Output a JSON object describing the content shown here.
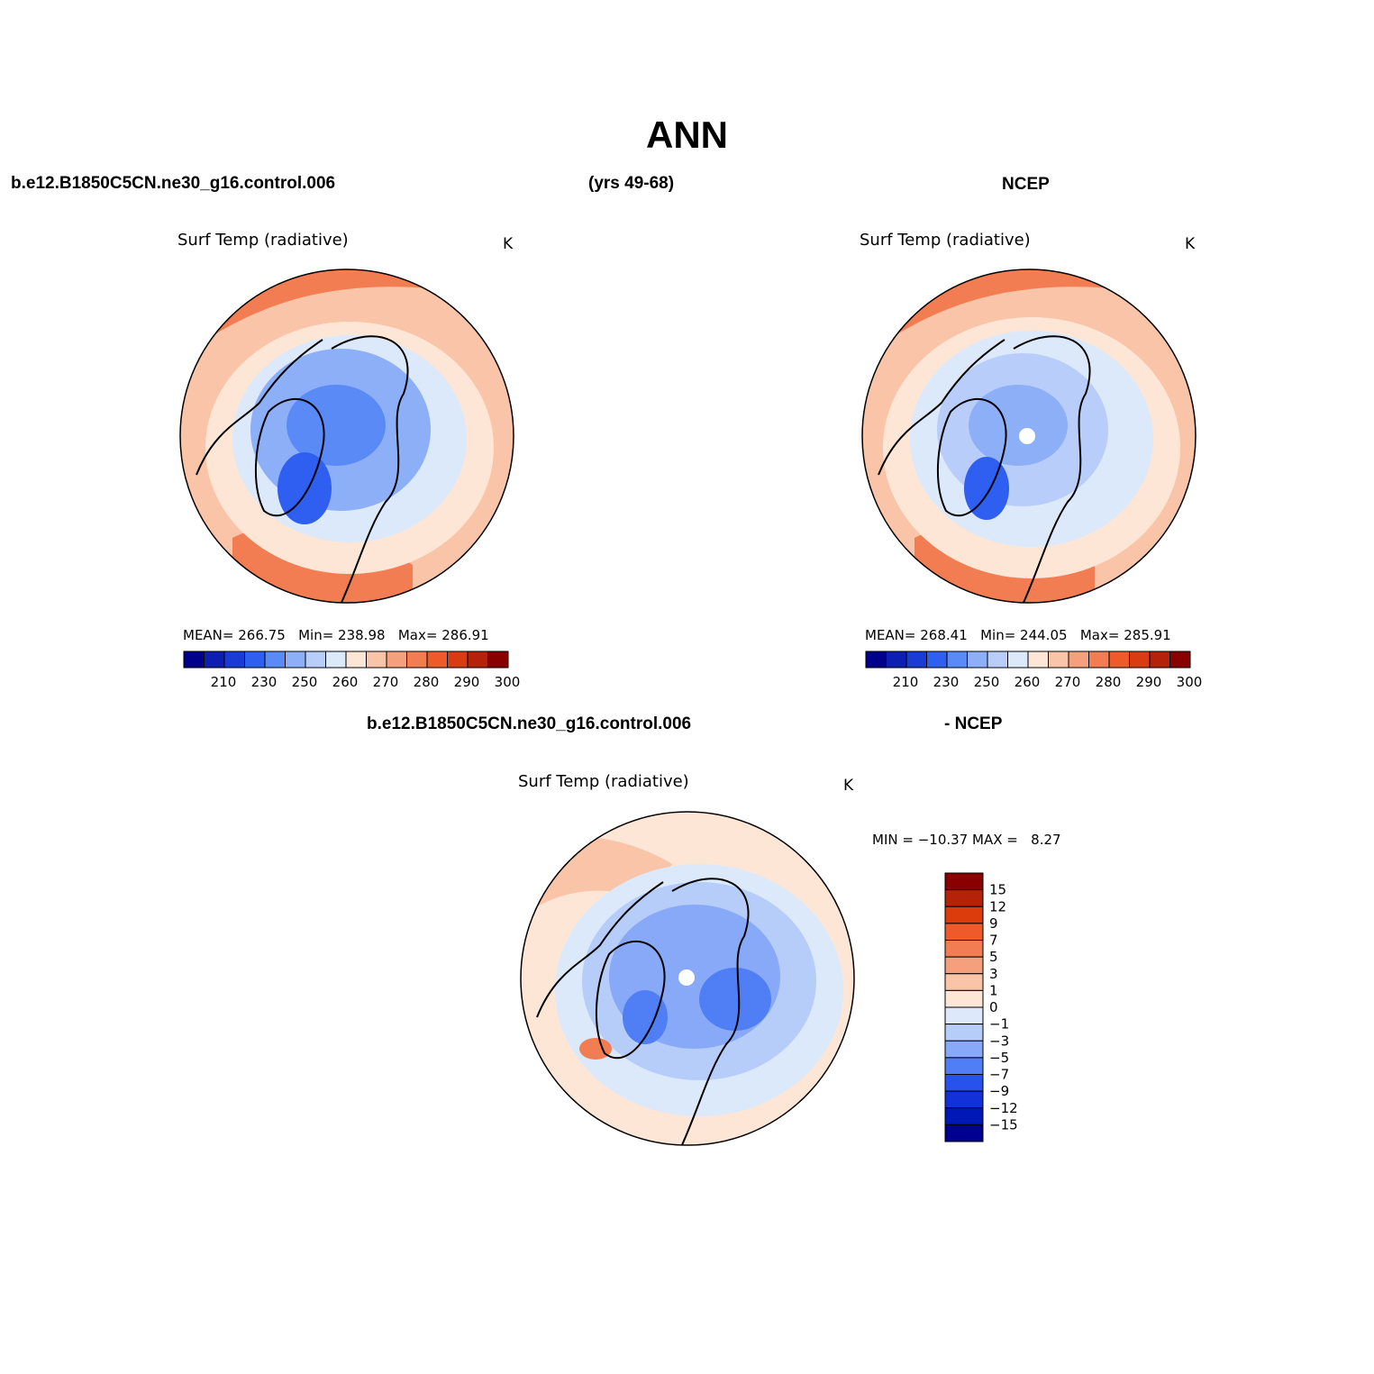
{
  "title": "ANN",
  "header": {
    "case_name": "b.e12.B1850C5CN.ne30_g16.control.006",
    "years": "(yrs 49-68)",
    "obs_name": "NCEP"
  },
  "diff_header": {
    "case_name": "b.e12.B1850C5CN.ne30_g16.control.006",
    "obs_suffix": "- NCEP"
  },
  "panels": {
    "model": {
      "variable": "Surf Temp (radiative)",
      "units": "K",
      "mean_label": "MEAN=",
      "mean": "266.75",
      "min_label": "Min=",
      "min": "238.98",
      "max_label": "Max=",
      "max": "286.91"
    },
    "obs": {
      "variable": "Surf Temp (radiative)",
      "units": "K",
      "mean_label": "MEAN=",
      "mean": "268.41",
      "min_label": "Min=",
      "min": "244.05",
      "max_label": "Max=",
      "max": "285.91"
    },
    "diff": {
      "variable": "Surf Temp (radiative)",
      "units": "K",
      "min_label": "MIN =",
      "min": "−10.37",
      "max_label": "MAX =",
      "max": "8.27"
    }
  },
  "abs_colorbar": {
    "colors": [
      "#00008b",
      "#0d1fb0",
      "#1a3bd4",
      "#2e5ff0",
      "#5a8af5",
      "#8daff8",
      "#b8cdf9",
      "#dce9fb",
      "#fde6d6",
      "#f9c4a8",
      "#f5a07c",
      "#f27d52",
      "#ef5a2a",
      "#d93c12",
      "#b5220a",
      "#880000"
    ],
    "labels": [
      "210",
      "230",
      "250",
      "260",
      "270",
      "280",
      "290",
      "300"
    ]
  },
  "diff_colorbar": {
    "colors": [
      "#000090",
      "#0018b8",
      "#1032d8",
      "#2852ee",
      "#507ef4",
      "#88a9f8",
      "#b6ccf9",
      "#dde8fb",
      "#fde6d6",
      "#f9c4a8",
      "#f5a07c",
      "#f27d52",
      "#ef5a2a",
      "#dc3c0c",
      "#b5220a",
      "#880000"
    ],
    "labels": [
      "15",
      "12",
      "9",
      "7",
      "5",
      "3",
      "1",
      "0",
      "−1",
      "−3",
      "−5",
      "−7",
      "−9",
      "−12",
      "−15"
    ]
  }
}
